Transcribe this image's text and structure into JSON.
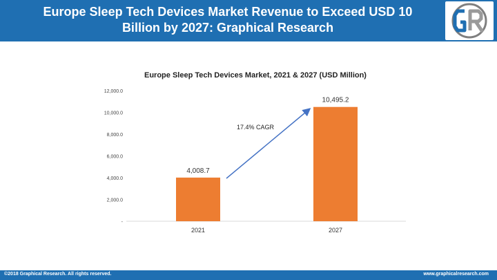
{
  "header": {
    "title": "Europe Sleep Tech Devices Market Revenue to Exceed USD 10 Billion by 2027: Graphical Research",
    "logo_text": "GR"
  },
  "colors": {
    "header_bg": "#1f6fb2",
    "bar": "#ed7d31",
    "arrow": "#4472c4"
  },
  "chart_data": {
    "type": "bar",
    "title": "Europe Sleep Tech Devices Market, 2021 & 2027 (USD Million)",
    "categories": [
      "2021",
      "2027"
    ],
    "values": [
      4008.7,
      10495.2
    ],
    "value_labels": [
      "4,008.7",
      "10,495.2"
    ],
    "ylim": [
      0,
      12000
    ],
    "yticks": [
      0,
      2000,
      4000,
      6000,
      8000,
      10000,
      12000
    ],
    "ytick_labels": [
      "-",
      "2,000.0",
      "4,000.0",
      "6,000.0",
      "8,000.0",
      "10,000.0",
      "12,000.0"
    ],
    "annotation": "17.4% CAGR",
    "grid": false,
    "legend": false
  },
  "footer": {
    "copyright": "©2018 Graphical Research. All rights reserved.",
    "website": "www.graphicalresearch.com"
  }
}
